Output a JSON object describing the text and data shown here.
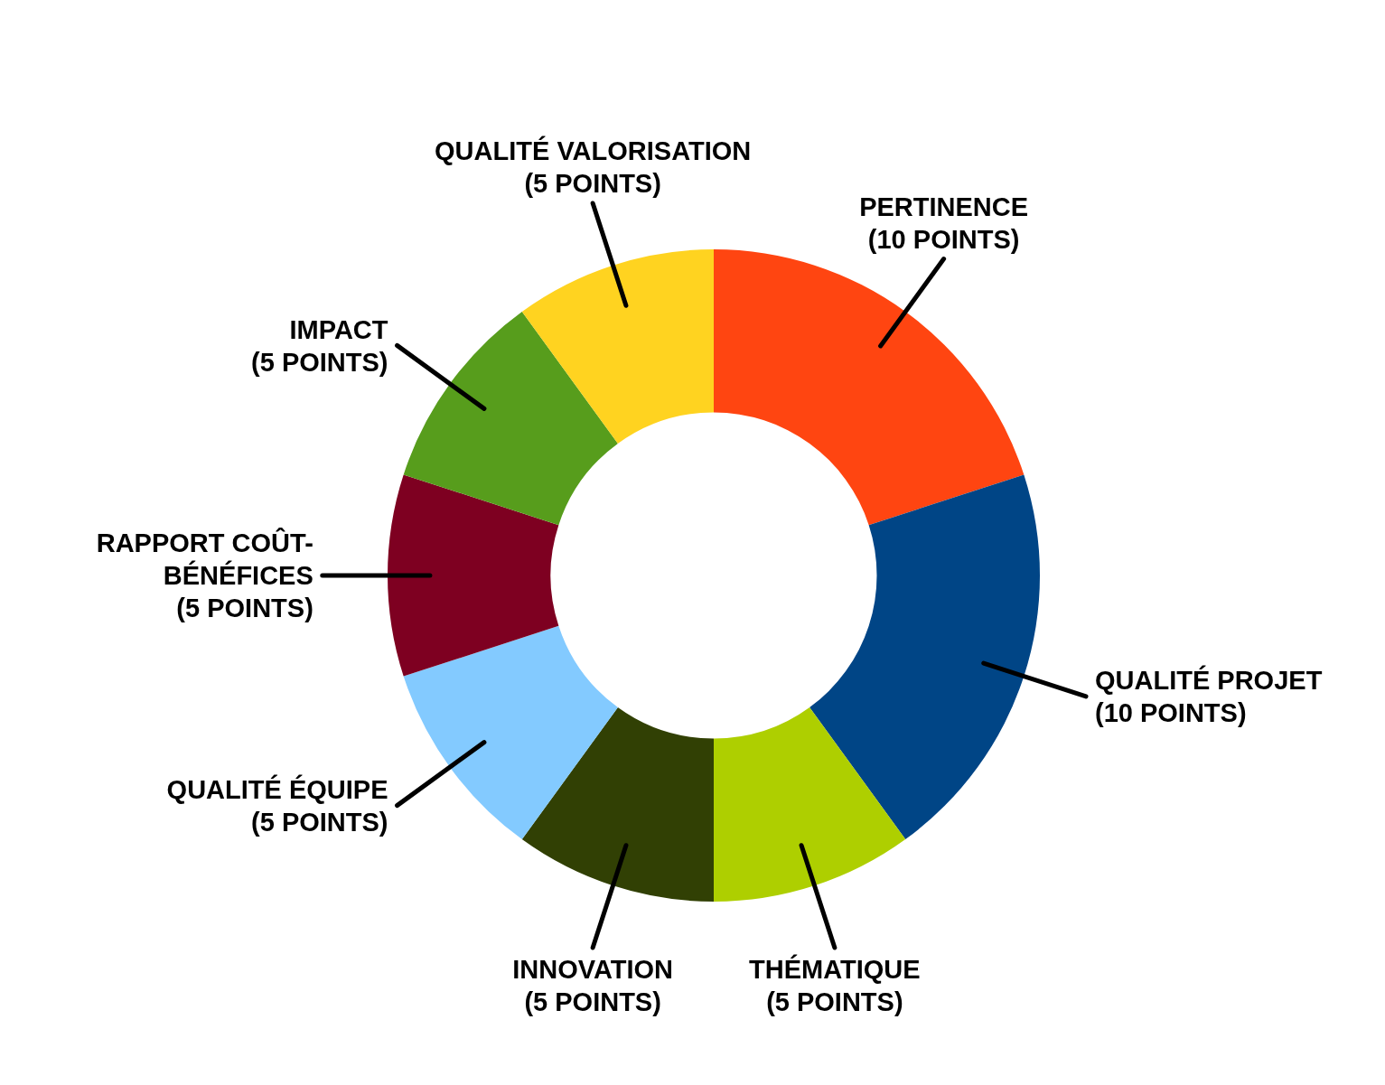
{
  "chart_data": {
    "type": "donut",
    "categories": [
      "PERTINENCE",
      "QUALITÉ PROJET",
      "THÉMATIQUE",
      "INNOVATION",
      "QUALITÉ ÉQUIPE",
      "RAPPORT COÛT-BÉNÉFICES",
      "IMPACT",
      "QUALITÉ VALORISATION"
    ],
    "values": [
      10,
      10,
      5,
      5,
      5,
      5,
      5,
      5
    ],
    "colors": [
      "#ff4511",
      "#004586",
      "#aecf00",
      "#314004",
      "#83caff",
      "#7e0021",
      "#579d1c",
      "#ffd320"
    ],
    "value_labels": [
      "(10 POINTS)",
      "(10 POINTS)",
      "(5 POINTS)",
      "(5 POINTS)",
      "(5 POINTS)",
      "(5 POINTS)",
      "(5 POINTS)",
      "(5 POINTS)"
    ]
  }
}
